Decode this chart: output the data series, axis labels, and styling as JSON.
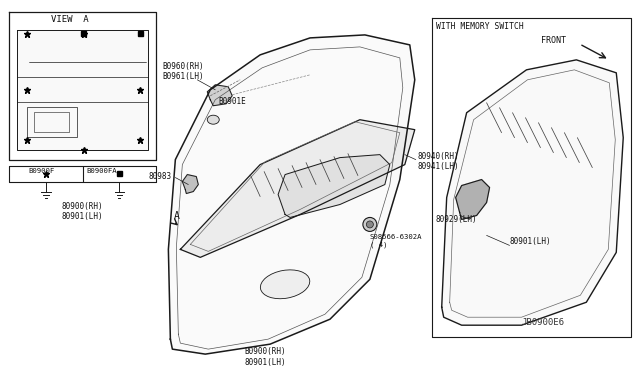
{
  "bg_color": "#ffffff",
  "line_color": "#1a1a1a",
  "diagram_code": "JB0900E6",
  "labels": {
    "B0960": "B0960(RH)\nB0961(LH)",
    "B0901E": "B0901E",
    "B0983": "80983",
    "B0940": "80940(RH)\n80941(LH)",
    "screw": "S08566-6302A\n( 4)",
    "B0900_main": "B0900(RH)\n80901(LH)",
    "B0900_bot": "B0900(RH)\n80901(LH)",
    "view_a_title": "VIEW  A",
    "B0900RH_leg": "80900(RH)\n80901(LH)",
    "B0900F": "B0900F",
    "B0900FA": "B0900FA",
    "with_memory": "WITH MEMORY SWITCH",
    "front": "FRONT",
    "B0929LH": "80929(LH)",
    "B0901LH": "80901(LH)"
  },
  "font_size_tiny": 5.0,
  "font_size_small": 5.8,
  "font_size_med": 7.0
}
